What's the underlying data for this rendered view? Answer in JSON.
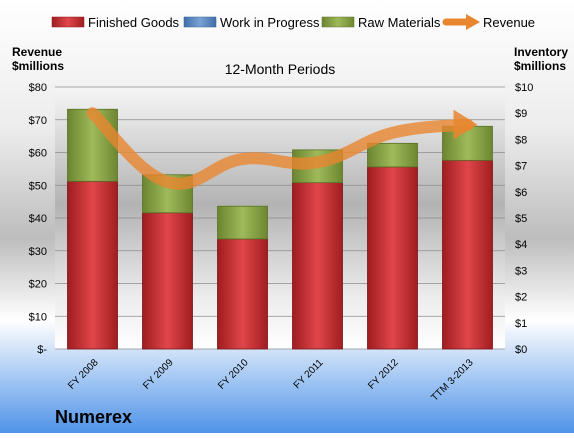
{
  "company": "Numerex",
  "colors": {
    "finished_goods": "#c0262b",
    "work_in_progress": "#4f81bd",
    "raw_materials": "#7f9a3b",
    "revenue": "#e8862f"
  },
  "chart_data": {
    "type": "bar",
    "stacked": true,
    "title": "12-Month Periods",
    "categories": [
      "FY 2008",
      "FY 2009",
      "FY 2010",
      "FY 2011",
      "FY 2012",
      "TTM 3-2013"
    ],
    "series": [
      {
        "name": "Finished Goods",
        "axis": "right",
        "values": [
          6.4,
          5.2,
          4.2,
          6.35,
          6.95,
          7.2
        ]
      },
      {
        "name": "Work in Progress",
        "axis": "right",
        "values": [
          0,
          0,
          0,
          0,
          0,
          0
        ]
      },
      {
        "name": "Raw Materials",
        "axis": "right",
        "values": [
          2.75,
          1.45,
          1.25,
          1.25,
          0.9,
          1.3
        ]
      },
      {
        "name": "Revenue",
        "type": "line",
        "axis": "left",
        "values": [
          72,
          51,
          58,
          57,
          66,
          68.5
        ]
      }
    ],
    "y_left": {
      "label_line1": "Revenue",
      "label_line2": "$millions",
      "ylim": [
        0,
        80
      ],
      "ticks": [
        "$-",
        "$10",
        "$20",
        "$30",
        "$40",
        "$50",
        "$60",
        "$70",
        "$80"
      ]
    },
    "y_right": {
      "label_line1": "Inventory",
      "label_line2": "$millions",
      "ylim": [
        0,
        10
      ],
      "ticks": [
        "$0",
        "$1",
        "$2",
        "$3",
        "$4",
        "$5",
        "$6",
        "$7",
        "$8",
        "$9",
        "$10"
      ]
    },
    "grid": true,
    "legend": "top"
  }
}
